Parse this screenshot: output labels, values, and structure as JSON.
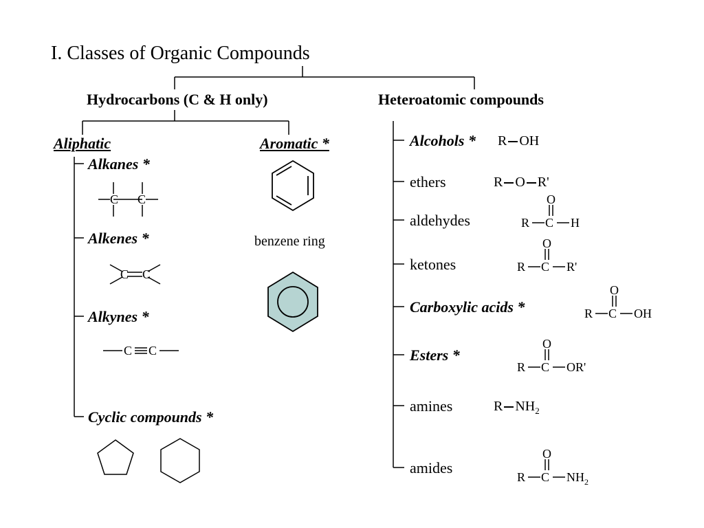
{
  "type": "tree-diagram",
  "background_color": "#ffffff",
  "stroke_color": "#000000",
  "hexagon_fill": "#b6d4d2",
  "title_fontsize": 28,
  "label_fontsize": 22,
  "formula_fontsize": 20,
  "title": "I. Classes of Organic Compounds",
  "branch1": {
    "label": "Hydrocarbons (C & H only)"
  },
  "branch2": {
    "label": "Heteroatomic compounds"
  },
  "aliphatic": {
    "label": "Aliphatic"
  },
  "aromatic": {
    "label": "Aromatic *"
  },
  "alkanes": {
    "label": "Alkanes *"
  },
  "alkenes": {
    "label": "Alkenes *"
  },
  "alkynes": {
    "label": "Alkynes *"
  },
  "cyclic": {
    "label": "Cyclic compounds *"
  },
  "benzene_caption": "benzene ring",
  "hetero_items": {
    "alcohols": {
      "label": "Alcohols *",
      "style": "bold-ital",
      "formula_html": "R<span style='display:inline-block;width:14px;border-top:2px solid #000;vertical-align:middle;margin:0 2px'></span>OH"
    },
    "ethers": {
      "label": "ethers",
      "style": "plain",
      "formula_html": "R<span style='display:inline-block;width:14px;border-top:2px solid #000;vertical-align:middle;margin:0 2px'></span>O<span style='display:inline-block;width:14px;border-top:2px solid #000;vertical-align:middle;margin:0 2px'></span>R'"
    },
    "aldehydes": {
      "label": "aldehydes",
      "style": "plain"
    },
    "ketones": {
      "label": "ketones",
      "style": "plain"
    },
    "carboxylic": {
      "label": "Carboxylic acids *",
      "style": "bold-ital"
    },
    "esters": {
      "label": "Esters *",
      "style": "bold-ital"
    },
    "amines": {
      "label": "amines",
      "style": "plain",
      "formula_html": "R<span style='display:inline-block;width:14px;border-top:2px solid #000;vertical-align:middle;margin:0 2px'></span>NH<span class='sub'>2</span>"
    },
    "amides": {
      "label": "amides",
      "style": "plain"
    }
  }
}
